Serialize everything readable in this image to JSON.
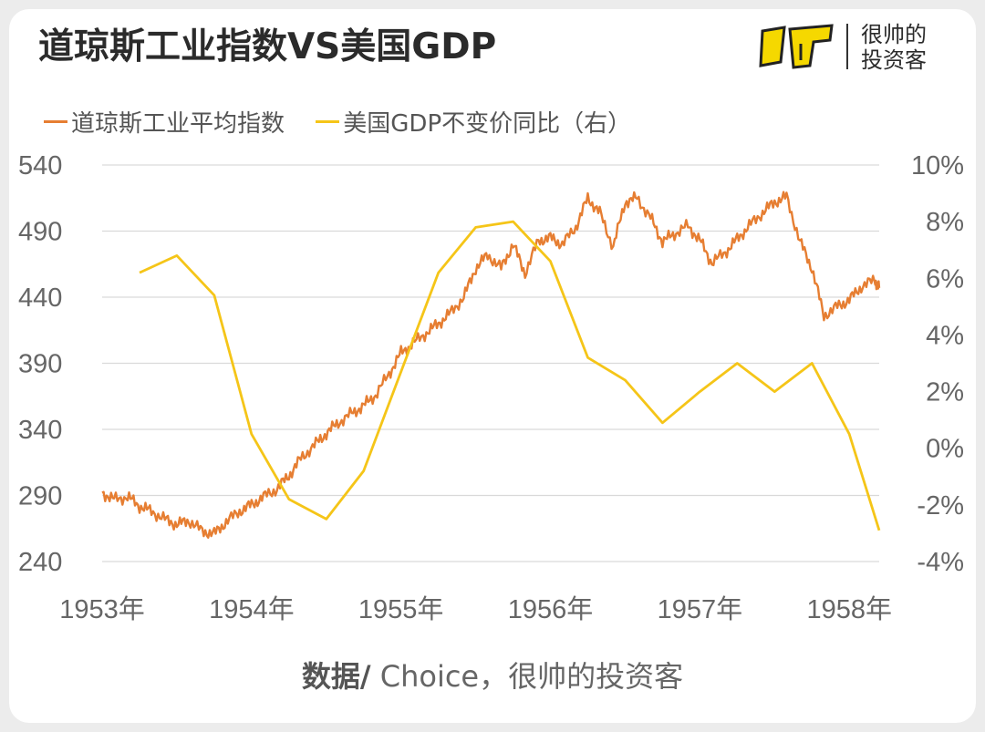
{
  "title": "道琼斯工业指数VS美国GDP",
  "logo": {
    "line1": "很帅的",
    "line2": "投资客"
  },
  "legend": [
    {
      "label": "道琼斯工业平均指数",
      "color": "#E67E32"
    },
    {
      "label": "美国GDP不变价同比（右）",
      "color": "#F5C518"
    }
  ],
  "source": {
    "prefix": "数据/",
    "text": " Choice，很帅的投资客"
  },
  "chart_data": {
    "type": "line",
    "x_ticks": [
      "1953年",
      "1954年",
      "1955年",
      "1956年",
      "1957年",
      "1958年"
    ],
    "x_range": [
      1953.0,
      1958.2
    ],
    "y_left": {
      "ticks": [
        "540",
        "490",
        "440",
        "390",
        "340",
        "290",
        "240"
      ],
      "ylim": [
        240,
        540
      ]
    },
    "y_right": {
      "ticks": [
        "10%",
        "8%",
        "6%",
        "4%",
        "2%",
        "0%",
        "-2%",
        "-4%"
      ],
      "ylim": [
        -4,
        10
      ]
    },
    "grid": true,
    "legend_position": "top-left",
    "series": [
      {
        "name": "道琼斯工业平均指数",
        "axis": "left",
        "color": "#E67E32",
        "points": [
          [
            1953.0,
            292
          ],
          [
            1953.08,
            287
          ],
          [
            1953.17,
            289
          ],
          [
            1953.25,
            282
          ],
          [
            1953.33,
            278
          ],
          [
            1953.42,
            272
          ],
          [
            1953.5,
            268
          ],
          [
            1953.58,
            271
          ],
          [
            1953.67,
            263
          ],
          [
            1953.75,
            261
          ],
          [
            1953.83,
            270
          ],
          [
            1953.92,
            278
          ],
          [
            1954.0,
            283
          ],
          [
            1954.08,
            289
          ],
          [
            1954.17,
            295
          ],
          [
            1954.25,
            305
          ],
          [
            1954.33,
            318
          ],
          [
            1954.42,
            328
          ],
          [
            1954.5,
            337
          ],
          [
            1954.58,
            345
          ],
          [
            1954.67,
            352
          ],
          [
            1954.75,
            358
          ],
          [
            1954.83,
            366
          ],
          [
            1954.92,
            382
          ],
          [
            1955.0,
            398
          ],
          [
            1955.08,
            405
          ],
          [
            1955.17,
            413
          ],
          [
            1955.25,
            420
          ],
          [
            1955.33,
            428
          ],
          [
            1955.42,
            440
          ],
          [
            1955.5,
            462
          ],
          [
            1955.58,
            472
          ],
          [
            1955.67,
            462
          ],
          [
            1955.75,
            480
          ],
          [
            1955.83,
            458
          ],
          [
            1955.92,
            483
          ],
          [
            1956.0,
            485
          ],
          [
            1956.08,
            480
          ],
          [
            1956.17,
            493
          ],
          [
            1956.25,
            515
          ],
          [
            1956.33,
            504
          ],
          [
            1956.42,
            478
          ],
          [
            1956.5,
            512
          ],
          [
            1956.58,
            515
          ],
          [
            1956.67,
            500
          ],
          [
            1956.75,
            482
          ],
          [
            1956.83,
            488
          ],
          [
            1956.92,
            494
          ],
          [
            1957.0,
            483
          ],
          [
            1957.08,
            466
          ],
          [
            1957.17,
            474
          ],
          [
            1957.25,
            484
          ],
          [
            1957.33,
            494
          ],
          [
            1957.42,
            504
          ],
          [
            1957.5,
            512
          ],
          [
            1957.58,
            516
          ],
          [
            1957.67,
            482
          ],
          [
            1957.75,
            462
          ],
          [
            1957.83,
            426
          ],
          [
            1957.92,
            433
          ],
          [
            1958.0,
            438
          ],
          [
            1958.08,
            448
          ],
          [
            1958.17,
            453
          ],
          [
            1958.2,
            447
          ]
        ]
      },
      {
        "name": "美国GDP不变价同比（右）",
        "axis": "right",
        "color": "#F5C518",
        "points": [
          [
            1953.25,
            6.2
          ],
          [
            1953.5,
            6.8
          ],
          [
            1953.75,
            5.4
          ],
          [
            1954.0,
            0.5
          ],
          [
            1954.25,
            -1.8
          ],
          [
            1954.5,
            -2.5
          ],
          [
            1954.75,
            -0.8
          ],
          [
            1955.0,
            2.7
          ],
          [
            1955.25,
            6.2
          ],
          [
            1955.5,
            7.8
          ],
          [
            1955.75,
            8.0
          ],
          [
            1956.0,
            6.6
          ],
          [
            1956.25,
            3.2
          ],
          [
            1956.5,
            2.4
          ],
          [
            1956.75,
            0.9
          ],
          [
            1957.0,
            2.0
          ],
          [
            1957.25,
            3.0
          ],
          [
            1957.5,
            2.0
          ],
          [
            1957.75,
            3.0
          ],
          [
            1958.0,
            0.5
          ],
          [
            1958.2,
            -2.9
          ]
        ]
      }
    ]
  }
}
